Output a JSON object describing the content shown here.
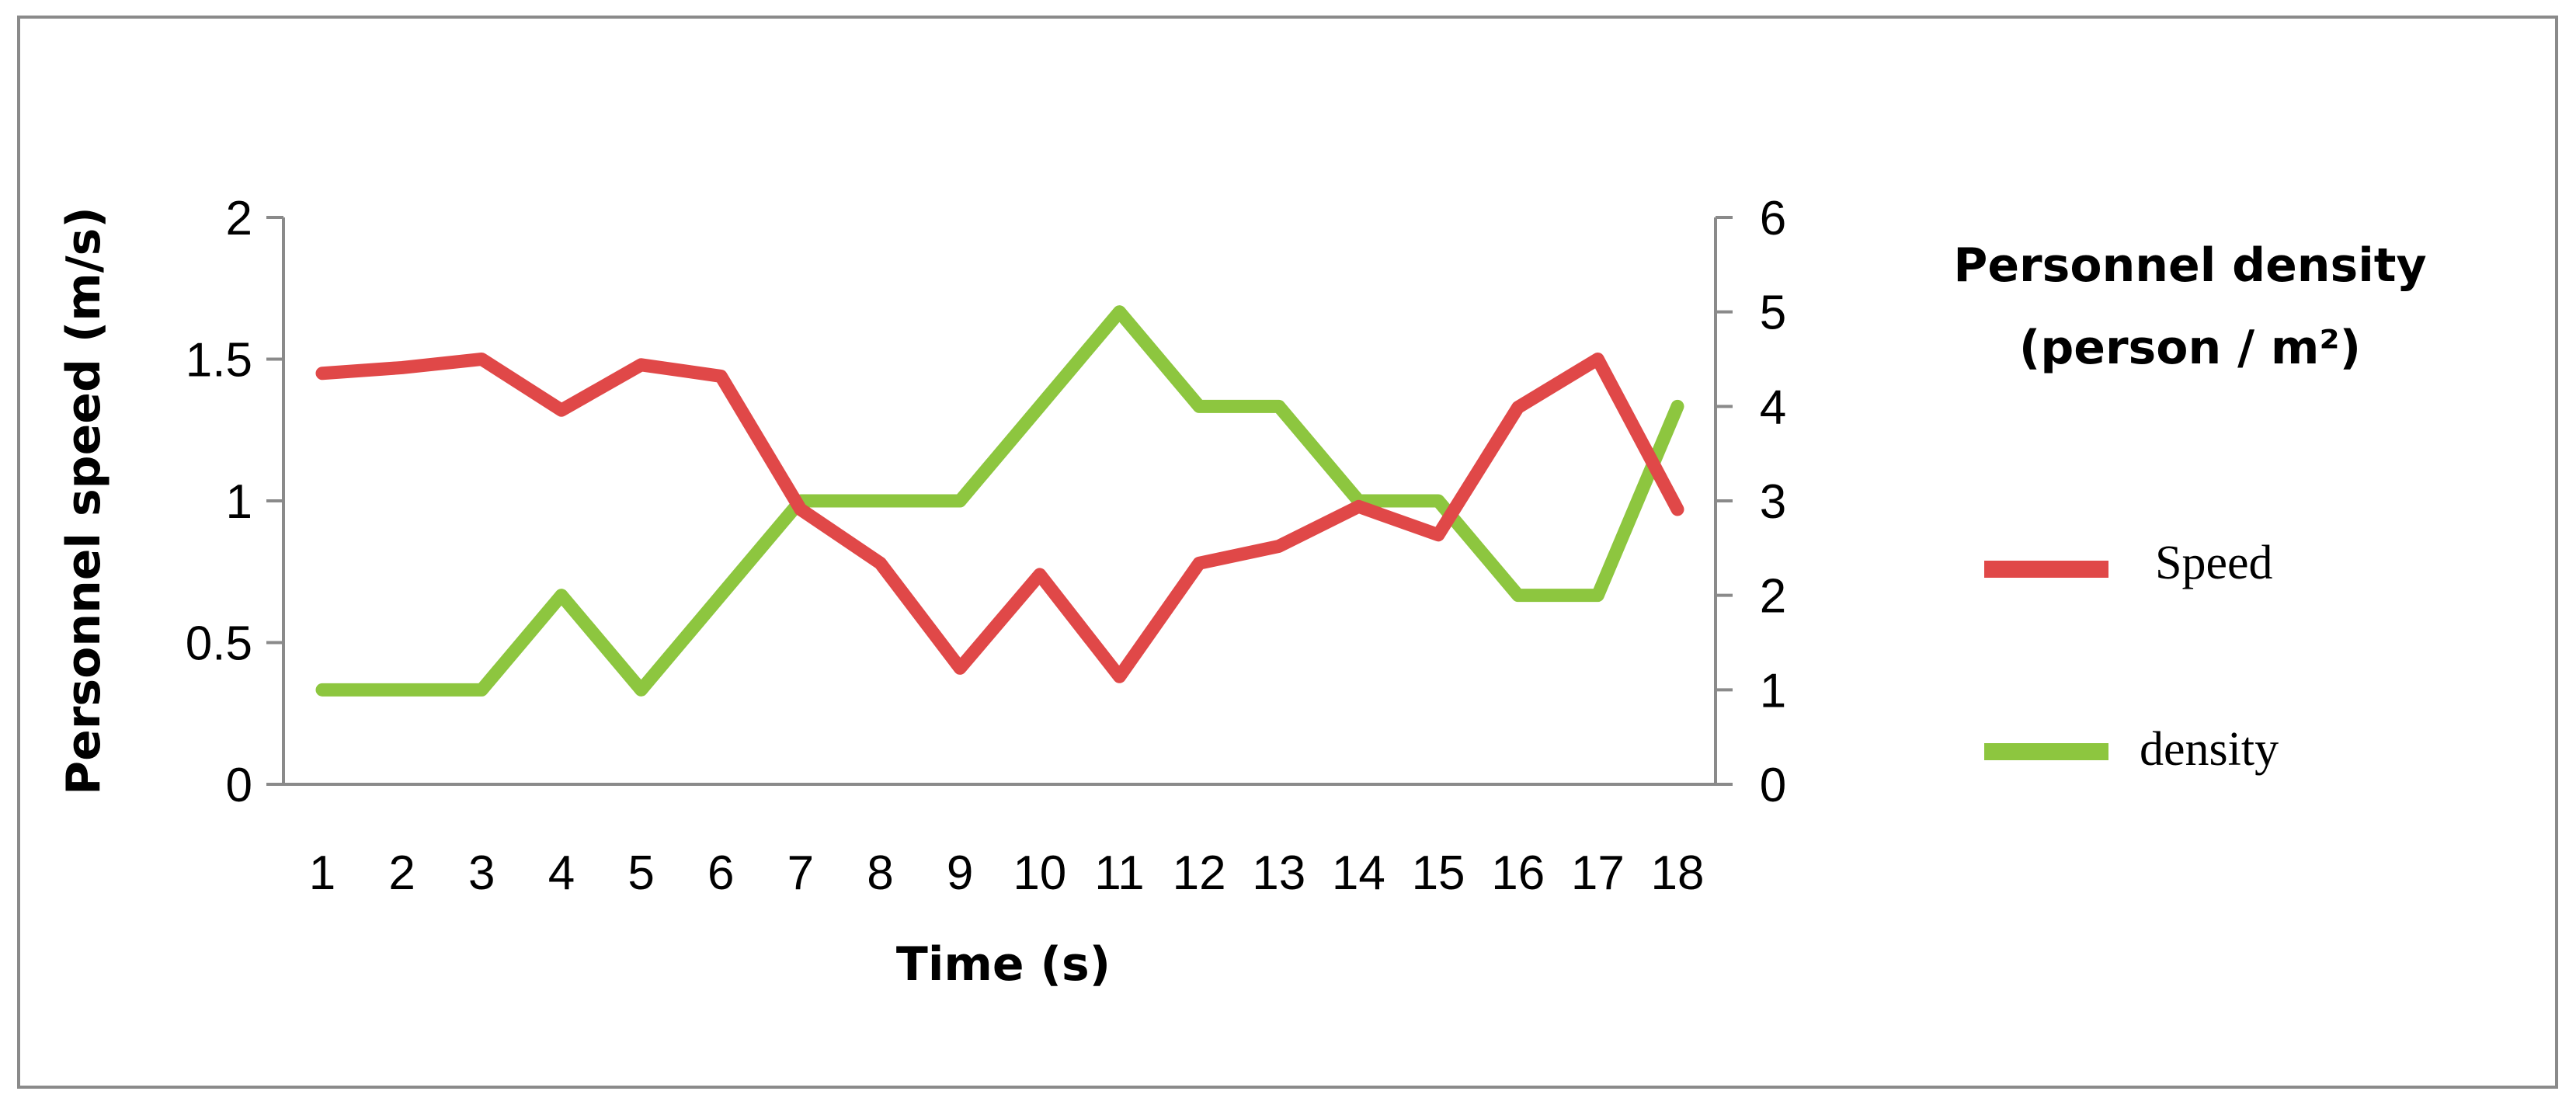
{
  "chart_data": {
    "type": "line",
    "x": [
      1,
      2,
      3,
      4,
      5,
      6,
      7,
      8,
      9,
      10,
      11,
      12,
      13,
      14,
      15,
      16,
      17,
      18
    ],
    "xlabel": "Time (s)",
    "ylabel_left": "Personnel speed (m/s)",
    "ylabel_right_line1": "Personnel density",
    "ylabel_right_line2": "(person / m²)",
    "y_left_ticks": [
      "0",
      "0.5",
      "1",
      "1.5",
      "2"
    ],
    "y_right_ticks": [
      "0",
      "1",
      "2",
      "3",
      "4",
      "5",
      "6"
    ],
    "ylim_left": [
      0,
      2
    ],
    "ylim_right": [
      0,
      6
    ],
    "grid": false,
    "legend_position": "right",
    "series": [
      {
        "name": "Speed",
        "axis": "left",
        "color": "#e04848",
        "values": [
          1.45,
          1.47,
          1.5,
          1.32,
          1.48,
          1.44,
          0.97,
          0.78,
          0.41,
          0.74,
          0.38,
          0.78,
          0.84,
          0.98,
          0.88,
          1.33,
          1.5,
          0.97
        ]
      },
      {
        "name": "density",
        "axis": "right",
        "color": "#8dc63f",
        "values": [
          1,
          1,
          1,
          2,
          1,
          2,
          3,
          3,
          3,
          4,
          5,
          4,
          4,
          3,
          3,
          2,
          2,
          4
        ]
      }
    ]
  }
}
